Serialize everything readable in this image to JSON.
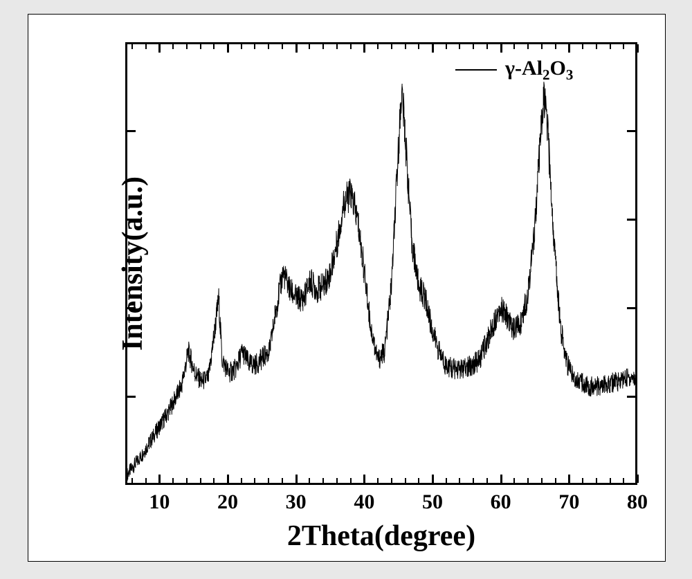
{
  "chart": {
    "type": "xrd-line",
    "background_color": "#ffffff",
    "page_background": "#e8e8e8",
    "line_color": "#000000",
    "frame_color": "#000000",
    "frame_width": 3,
    "axis_fontsize_pt": 42,
    "tick_fontsize_pt": 30,
    "font_family": "Times New Roman",
    "font_weight": "bold",
    "xlabel": "2Theta(degree)",
    "ylabel": "Intensity(a.u.)",
    "xlim": [
      5,
      80
    ],
    "ylim": [
      0,
      100
    ],
    "x_major_ticks": [
      10,
      20,
      30,
      40,
      50,
      60,
      70,
      80
    ],
    "x_minor_step": 2,
    "y_major_ticks_inside": true,
    "y_tick_count": 5,
    "legend": {
      "label_html": "γ-Al<sub>2</sub>O<sub>3</sub>",
      "label_plain": "γ-Al2O3",
      "line_sample_color": "#000000",
      "position": "top-right",
      "fontsize": 30
    },
    "baseline_profile": [
      [
        5,
        2
      ],
      [
        7,
        6
      ],
      [
        9,
        11
      ],
      [
        11,
        16
      ],
      [
        13,
        22
      ],
      [
        14,
        30
      ],
      [
        15,
        25
      ],
      [
        16,
        23
      ],
      [
        17,
        24
      ],
      [
        18.5,
        42
      ],
      [
        19,
        28
      ],
      [
        20,
        25
      ],
      [
        21,
        26
      ],
      [
        22,
        30
      ],
      [
        23,
        27
      ],
      [
        24,
        27
      ],
      [
        26,
        30
      ],
      [
        27,
        40
      ],
      [
        28,
        48
      ],
      [
        29,
        44
      ],
      [
        30,
        42
      ],
      [
        31,
        42
      ],
      [
        32,
        46
      ],
      [
        33,
        44
      ],
      [
        34,
        45
      ],
      [
        35,
        48
      ],
      [
        36,
        55
      ],
      [
        37,
        64
      ],
      [
        38,
        66
      ],
      [
        39,
        60
      ],
      [
        40,
        48
      ],
      [
        41,
        35
      ],
      [
        42,
        28
      ],
      [
        43,
        30
      ],
      [
        44,
        45
      ],
      [
        45,
        75
      ],
      [
        45.5,
        90
      ],
      [
        46,
        80
      ],
      [
        47,
        55
      ],
      [
        48,
        45
      ],
      [
        49,
        42
      ],
      [
        50,
        35
      ],
      [
        51,
        30
      ],
      [
        52,
        27
      ],
      [
        53,
        26
      ],
      [
        55,
        26
      ],
      [
        57,
        28
      ],
      [
        58,
        32
      ],
      [
        59,
        36
      ],
      [
        60,
        40
      ],
      [
        61,
        38
      ],
      [
        62,
        35
      ],
      [
        63,
        36
      ],
      [
        64,
        42
      ],
      [
        65,
        55
      ],
      [
        66,
        78
      ],
      [
        66.5,
        88
      ],
      [
        67,
        82
      ],
      [
        68,
        55
      ],
      [
        69,
        35
      ],
      [
        70,
        27
      ],
      [
        71,
        24
      ],
      [
        73,
        22
      ],
      [
        75,
        22
      ],
      [
        77,
        23
      ],
      [
        79,
        24
      ],
      [
        80,
        24
      ]
    ],
    "noise_amplitude": 6,
    "noise_points_per_x": 14
  }
}
